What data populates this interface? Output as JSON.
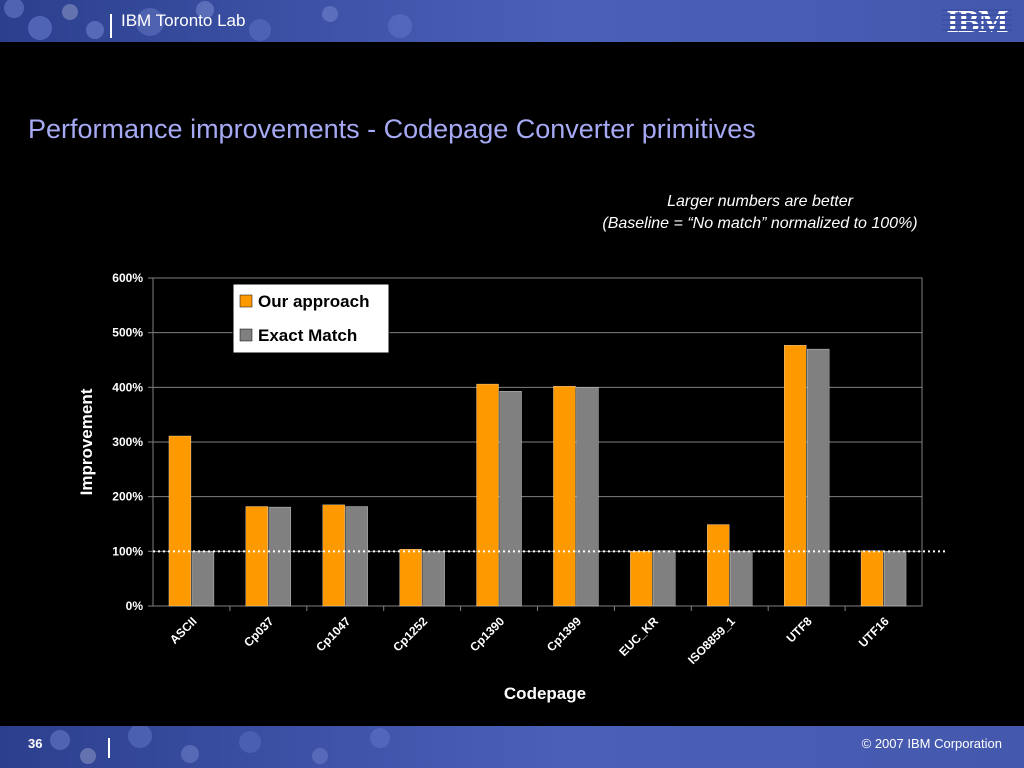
{
  "header": {
    "lab_name": "IBM Toronto Lab",
    "logo_text": "IBM"
  },
  "slide": {
    "title": "Performance improvements - Codepage Converter primitives",
    "note_line1": "Larger numbers are better",
    "note_line2": "(Baseline = “No match” normalized to 100%)"
  },
  "footer": {
    "page_number": "36",
    "copyright": "© 2007 IBM Corporation"
  },
  "colors": {
    "bar_bg": "#3d52a6",
    "title": "#a6a9f3",
    "series_our": "#ff9900",
    "series_exact": "#808080",
    "baseline": "#ffffff"
  },
  "chart_data": {
    "type": "bar",
    "categories": [
      "ASCII",
      "Cp037",
      "Cp1047",
      "Cp1252",
      "Cp1390",
      "Cp1399",
      "EUC_KR",
      "ISO8859_1",
      "UTF8",
      "UTF16"
    ],
    "series": [
      {
        "name": "Our approach",
        "color": "#ff9900",
        "values": [
          311,
          182,
          185,
          104,
          406,
          402,
          100,
          149,
          477,
          101
        ]
      },
      {
        "name": "Exact Match",
        "color": "#808080",
        "values": [
          100,
          181,
          182,
          100,
          393,
          400,
          101,
          100,
          470,
          100
        ]
      }
    ],
    "xlabel": "Codepage",
    "ylabel": "Improvement",
    "ylim": [
      0,
      600
    ],
    "yticks": [
      "0%",
      "100%",
      "200%",
      "300%",
      "400%",
      "500%",
      "600%"
    ],
    "baseline_value": 100,
    "grid": true,
    "legend_position": "top-left"
  }
}
